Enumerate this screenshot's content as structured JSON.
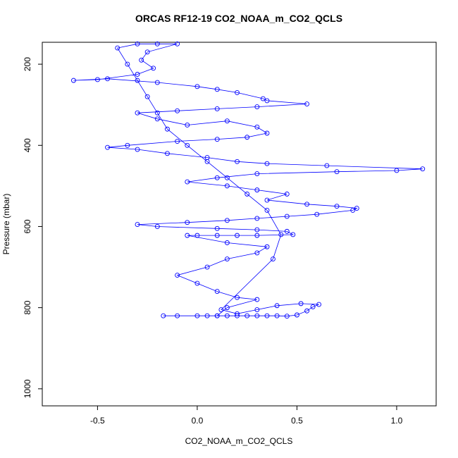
{
  "chart_data": {
    "type": "scatter",
    "lines": true,
    "title": "ORCAS RF12-19 CO2_NOAA_m_CO2_QCLS",
    "x_label": "CO2_NOAA_m_CO2_QCLS",
    "y_label": "Pressure (mbar)",
    "xlim": [
      -0.777,
      1.198
    ],
    "ylim": [
      1042,
      146
    ],
    "y_reversed": true,
    "xticks": [
      -0.5,
      {
        "value": 0,
        "label": "0.0"
      },
      0.5,
      {
        "value": 1,
        "label": "1.0"
      }
    ],
    "yticks": [
      200,
      400,
      600,
      800,
      1000
    ],
    "color": "#0000ff",
    "x": [
      -0.17,
      -0.1,
      0.0,
      0.05,
      0.1,
      0.15,
      0.2,
      0.25,
      0.3,
      0.35,
      0.4,
      0.45,
      0.5,
      0.55,
      0.58,
      0.61,
      0.52,
      0.4,
      0.3,
      0.2,
      0.12,
      0.38,
      0.42,
      0.35,
      0.25,
      0.15,
      0.05,
      -0.05,
      -0.15,
      -0.2,
      -0.25,
      -0.3,
      -0.35,
      -0.4,
      -0.3,
      -0.2,
      -0.1,
      -0.25,
      -0.28,
      -0.22,
      -0.3,
      -0.5,
      -0.62,
      -0.45,
      -0.2,
      0.0,
      0.1,
      0.2,
      0.33,
      0.35,
      0.55,
      0.3,
      0.1,
      -0.1,
      -0.3,
      -0.2,
      -0.05,
      0.15,
      0.3,
      0.35,
      0.25,
      0.1,
      -0.1,
      -0.35,
      -0.45,
      -0.3,
      -0.15,
      0.05,
      0.2,
      0.35,
      0.65,
      1.13,
      1.0,
      0.7,
      0.3,
      0.1,
      -0.05,
      0.15,
      0.3,
      0.45,
      0.35,
      0.55,
      0.7,
      0.8,
      0.78,
      0.6,
      0.45,
      0.3,
      0.15,
      -0.05,
      -0.3,
      -0.2,
      0.1,
      0.3,
      0.45,
      0.48,
      0.3,
      0.2,
      0.1,
      0.0,
      -0.05,
      0.15,
      0.35,
      0.3,
      0.15,
      0.05,
      -0.1,
      0.0,
      0.1,
      0.2,
      0.3,
      0.15,
      0.1
    ],
    "y": [
      820,
      820,
      820,
      820,
      820,
      820,
      820,
      820,
      820,
      820,
      820,
      821,
      818,
      808,
      798,
      792,
      790,
      795,
      805,
      815,
      805,
      680,
      620,
      560,
      520,
      480,
      440,
      400,
      360,
      320,
      280,
      240,
      200,
      160,
      150,
      150,
      150,
      170,
      190,
      210,
      225,
      238,
      240,
      236,
      245,
      255,
      262,
      270,
      285,
      290,
      298,
      305,
      310,
      315,
      320,
      335,
      350,
      340,
      355,
      370,
      380,
      385,
      390,
      400,
      405,
      410,
      420,
      430,
      440,
      445,
      450,
      458,
      462,
      465,
      470,
      480,
      490,
      500,
      510,
      520,
      535,
      545,
      550,
      555,
      560,
      570,
      575,
      580,
      585,
      590,
      595,
      600,
      605,
      608,
      612,
      620,
      622,
      622,
      622,
      622,
      622,
      640,
      650,
      665,
      680,
      700,
      720,
      740,
      760,
      775,
      780,
      800,
      820
    ]
  }
}
